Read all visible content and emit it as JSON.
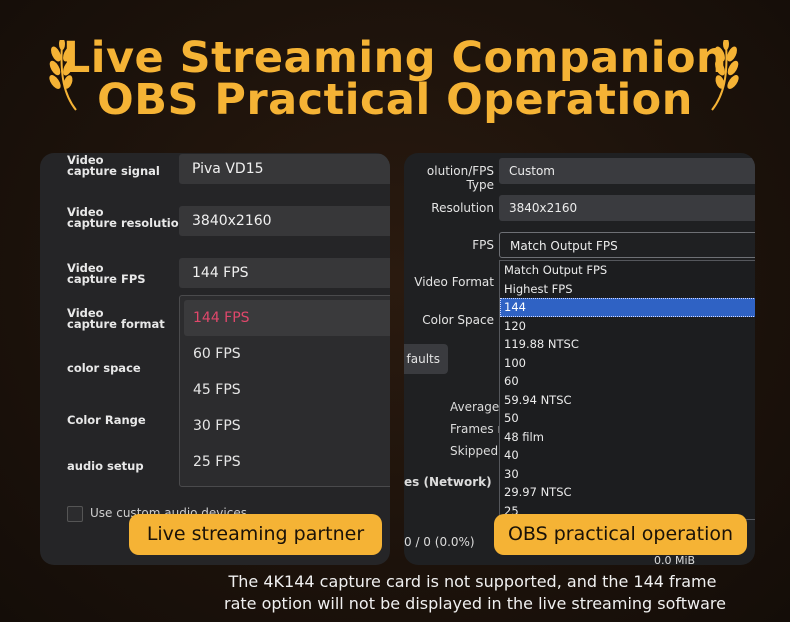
{
  "title": {
    "line1": "Live Streaming Companion",
    "line2": "OBS Practical Operation"
  },
  "left_panel": {
    "labels": {
      "capture_signal": "Video\ncapture signal",
      "capture_resolution": "Video\ncapture resolution",
      "capture_fps": "Video\ncapture FPS",
      "capture_format": "Video\ncapture format",
      "color_space": "color space",
      "color_range": "Color Range",
      "audio_setup": "audio setup"
    },
    "values": {
      "capture_signal": "Piva VD15",
      "capture_resolution": "3840x2160",
      "capture_fps": "144 FPS"
    },
    "fps_options": [
      "144 FPS",
      "60 FPS",
      "45 FPS",
      "30 FPS",
      "25 FPS"
    ],
    "selected_fps": "144 FPS",
    "custom_audio_label": "Use custom audio devices"
  },
  "right_panel": {
    "labels": {
      "res_fps_type": "olution/FPS Type",
      "resolution": "Resolution",
      "fps": "FPS",
      "video_format": "Video Format",
      "color_space": "Color Space"
    },
    "values": {
      "res_fps_type": "Custom",
      "resolution": "3840x2160",
      "fps": "Match Output FPS"
    },
    "defaults_button": "faults",
    "stats": {
      "average": "Average t",
      "frames": "Frames m",
      "skipped": "Skipped f",
      "network": "es (Network)",
      "dropped": "0 / 0 (0.0%)",
      "mib": "0.0 MiB"
    },
    "fps_options": [
      "Match Output FPS",
      "Highest FPS",
      "144",
      "120",
      "119.88 NTSC",
      "100",
      "60",
      "59.94 NTSC",
      "50",
      "48 film",
      "40",
      "30",
      "29.97 NTSC",
      "25"
    ],
    "selected_fps_option": "144"
  },
  "badges": {
    "left": "Live streaming partner",
    "right": "OBS practical operation"
  },
  "caption": {
    "line1": "The 4K144 capture card is not supported, and the 144 frame",
    "line2": "rate option will not be displayed in the live streaming software"
  },
  "colors": {
    "accent": "#f5b335",
    "selected_red": "#e0476b",
    "selected_blue": "#2f62c4"
  }
}
